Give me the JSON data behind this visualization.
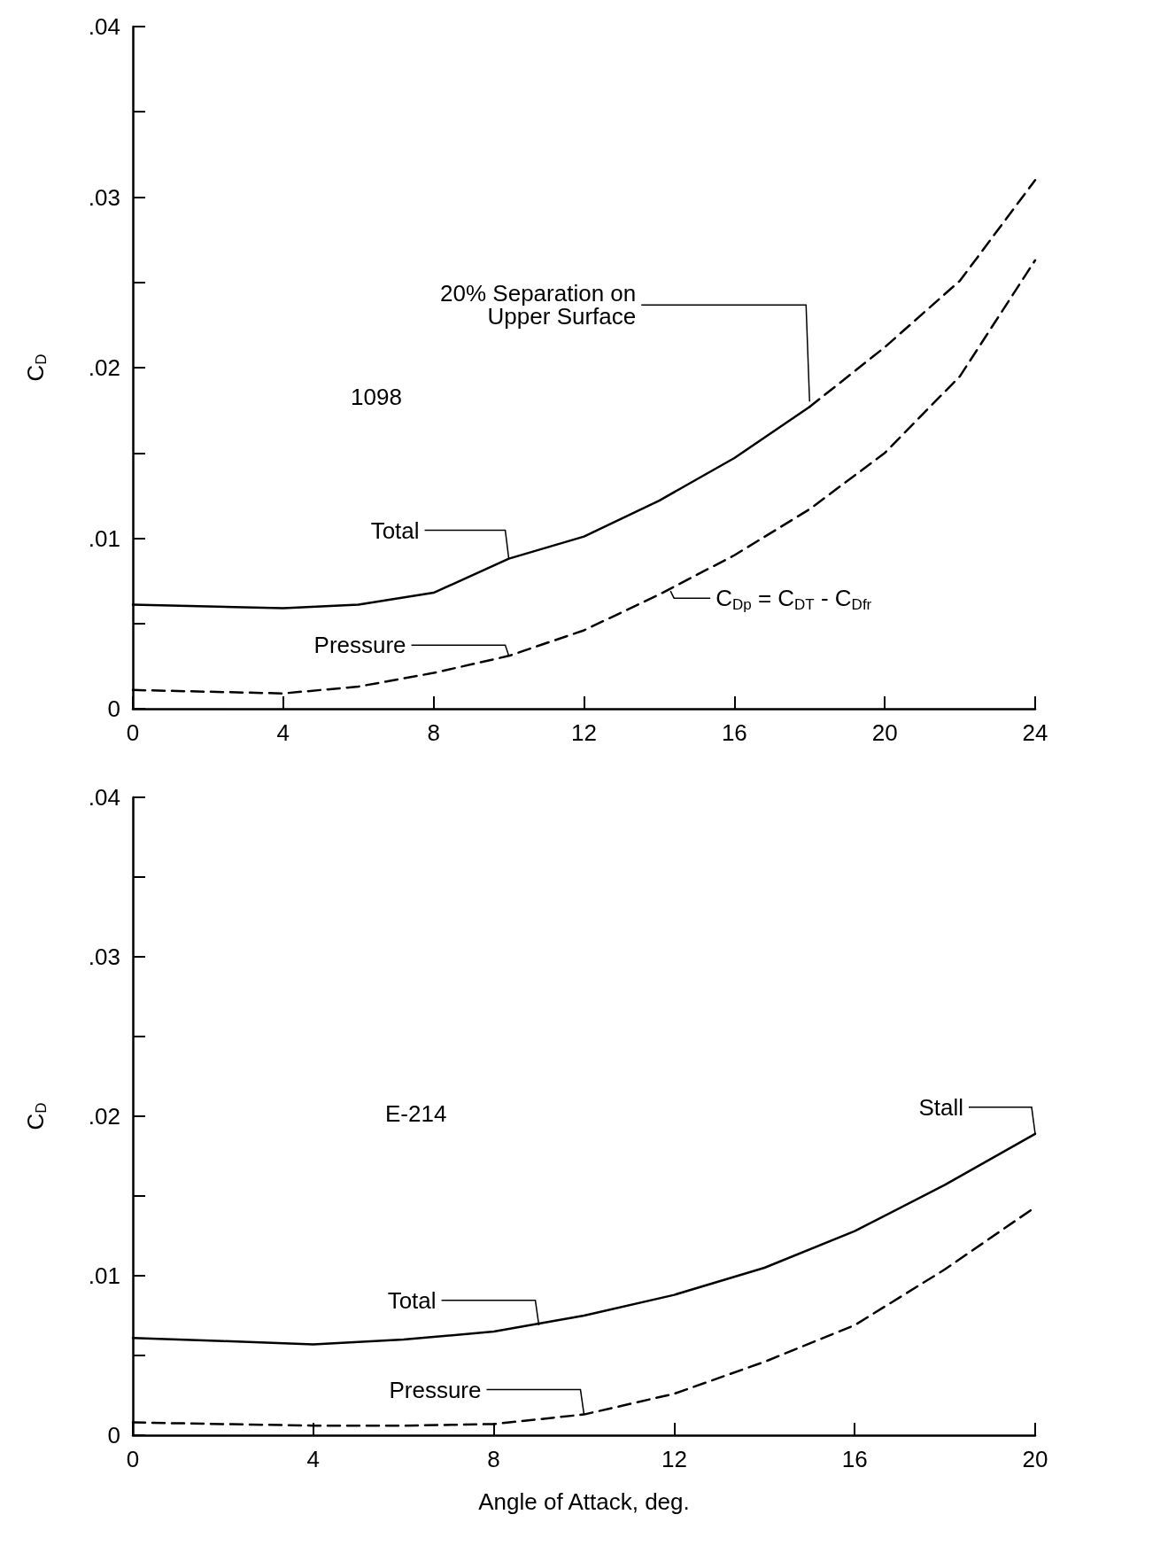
{
  "chart_data": [
    {
      "type": "line",
      "ylabel": "C$_{D}$",
      "xlim": [
        0,
        24
      ],
      "ylim": [
        0,
        0.04
      ],
      "xticks": [
        0,
        4,
        8,
        12,
        16,
        20,
        24
      ],
      "yticks": [
        0,
        {
          "value": 0.005,
          "label": null
        },
        {
          "value": 0.01,
          "label": ".01"
        },
        {
          "value": 0.015,
          "label": null
        },
        {
          "value": 0.02,
          "label": ".02"
        },
        {
          "value": 0.025,
          "label": null
        },
        {
          "value": 0.03,
          "label": ".03"
        },
        {
          "value": 0.035,
          "label": null
        },
        {
          "value": 0.04,
          "label": ".04"
        }
      ],
      "grid": false,
      "marker": "none",
      "line_style": "solid",
      "series": [
        {
          "color": "#000000",
          "x": [
            0,
            2,
            4,
            6,
            8,
            10,
            12,
            14,
            16,
            18
          ],
          "values": [
            0.0061,
            0.006,
            0.0059,
            0.0061,
            0.0068,
            0.0088,
            0.0101,
            0.0122,
            0.0147,
            0.0177
          ]
        },
        {
          "color": "#000000",
          "line_style": "dashed",
          "x": [
            18,
            20,
            22,
            24
          ],
          "values": [
            0.0177,
            0.0212,
            0.0251,
            0.031
          ]
        },
        {
          "color": "#000000",
          "line_style": "dashed",
          "x": [
            0,
            2,
            4,
            6,
            8,
            10,
            12,
            14,
            16,
            18,
            20,
            22,
            24
          ],
          "values": [
            0.0011,
            0.001,
            0.0009,
            0.0013,
            0.0021,
            0.0031,
            0.0046,
            0.0067,
            0.009,
            0.0117,
            0.015,
            0.0195,
            0.0263
          ]
        }
      ],
      "annotations": [
        {
          "text": "Total",
          "x": 10,
          "y": 0.0088
        },
        {
          "text": "Pressure",
          "x": 10,
          "y": 0.0031
        },
        {
          "text": "20% Separation on\nUpper Surface",
          "x": 18,
          "y": 0.0177
        },
        {
          "text": "C$_{Dp}$ = C$_{DT}$ - C$_{Dfr}$",
          "x": 14.3,
          "y": 0.0069
        },
        "1098"
      ]
    },
    {
      "type": "line",
      "ylabel": "C$_{D}$",
      "xlabel": "Angle of Attack, deg.",
      "xlim": [
        0,
        20
      ],
      "ylim": [
        0,
        0.04
      ],
      "xticks": [
        0,
        4,
        8,
        12,
        16,
        20
      ],
      "yticks": [
        0,
        {
          "value": 0.005,
          "label": null
        },
        {
          "value": 0.01,
          "label": ".01"
        },
        {
          "value": 0.015,
          "label": null
        },
        {
          "value": 0.02,
          "label": ".02"
        },
        {
          "value": 0.025,
          "label": null
        },
        {
          "value": 0.03,
          "label": ".03"
        },
        {
          "value": 0.035,
          "label": null
        },
        {
          "value": 0.04,
          "label": ".04"
        }
      ],
      "grid": false,
      "marker": "none",
      "line_style": "solid",
      "series": [
        {
          "color": "#000000",
          "x": [
            0,
            2,
            4,
            6,
            8,
            10,
            12,
            14,
            16,
            18,
            20
          ],
          "values": [
            0.0061,
            0.0059,
            0.0057,
            0.006,
            0.0065,
            0.0075,
            0.0088,
            0.0105,
            0.0128,
            0.0157,
            0.0189
          ]
        },
        {
          "color": "#000000",
          "line_style": "dashed",
          "x": [
            0,
            2,
            4,
            6,
            8,
            10,
            12,
            14,
            16,
            18,
            20
          ],
          "values": [
            0.0008,
            0.0007,
            0.0006,
            0.0006,
            0.0007,
            0.0013,
            0.0026,
            0.0046,
            0.0069,
            0.0104,
            0.0143
          ]
        }
      ],
      "annotations": [
        {
          "text": "Total",
          "x": 9,
          "y": 0.0069
        },
        {
          "text": "Pressure",
          "x": 10,
          "y": 0.0013
        },
        {
          "text": "Stall",
          "x": 20,
          "y": 0.0189
        },
        "E-214"
      ]
    }
  ]
}
